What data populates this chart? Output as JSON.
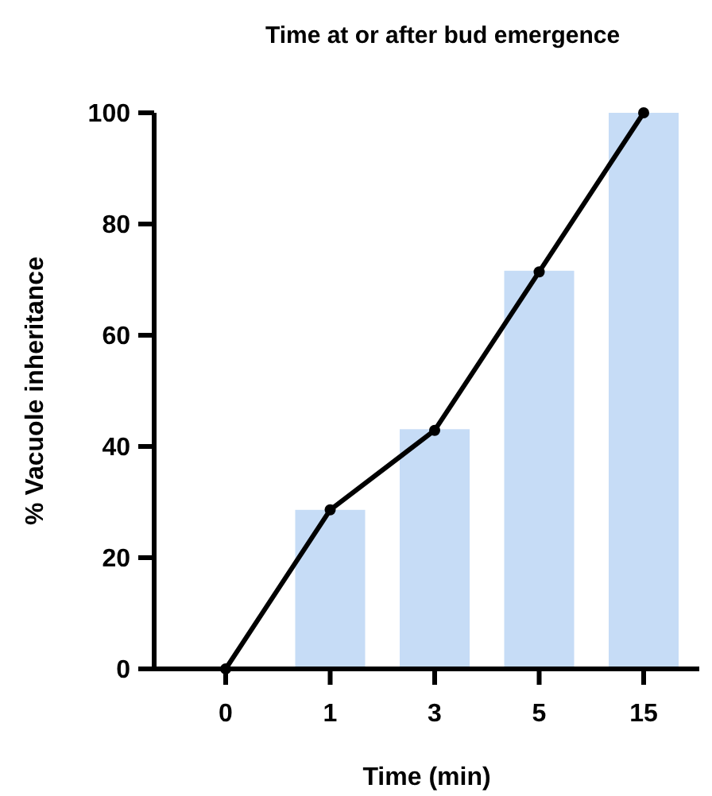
{
  "chart_data": {
    "type": "bar",
    "title": "Time at or after bud emergence",
    "xlabel": "Time (min)",
    "ylabel": "% Vacuole inheritance",
    "categories": [
      "0",
      "1",
      "3",
      "5",
      "15"
    ],
    "series": [
      {
        "color": "#c6dcf6",
        "values": [
          0,
          28.6,
          43.1,
          71.6,
          100
        ]
      },
      {
        "type": "line",
        "color": "#000000",
        "values": [
          0,
          28.6,
          42.9,
          71.4,
          100
        ],
        "marker": "circle",
        "line_style": "solid"
      }
    ],
    "ylim": [
      0,
      100
    ],
    "yticks": [
      0,
      20,
      40,
      60,
      80,
      100
    ],
    "grid": false
  }
}
